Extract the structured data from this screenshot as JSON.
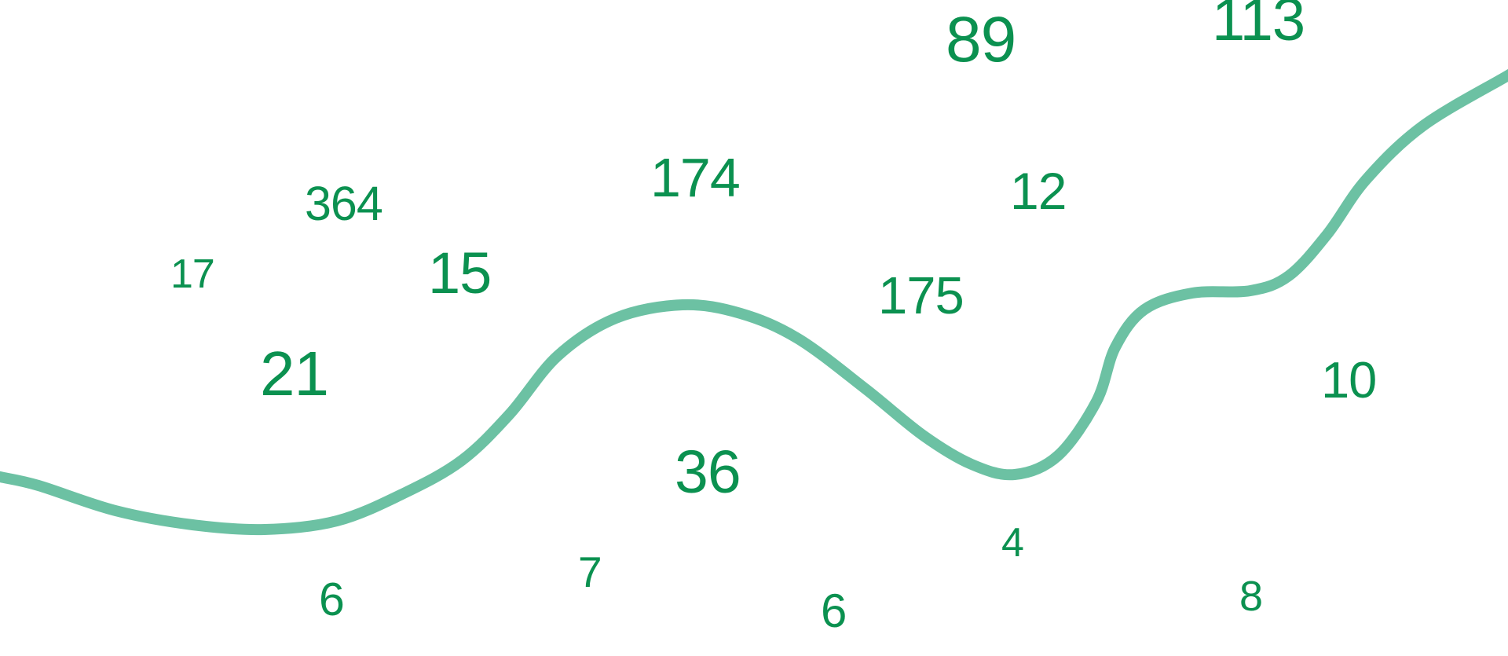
{
  "colors": {
    "number": "#0b9150",
    "curve": "#6cc1a3",
    "background": "#ffffff"
  },
  "numbers": [
    "89",
    "113",
    "174",
    "364",
    "12",
    "17",
    "15",
    "175",
    "21",
    "10",
    "36",
    "4",
    "7",
    "6",
    "6",
    "8"
  ]
}
